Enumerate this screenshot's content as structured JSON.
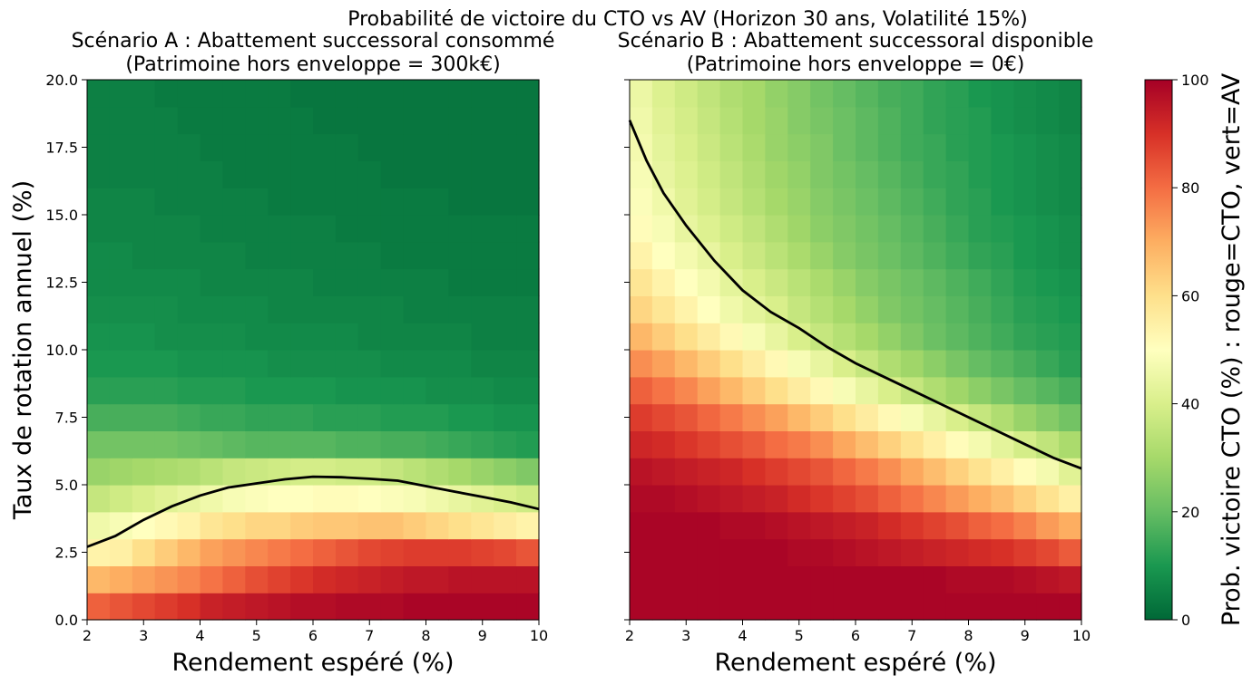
{
  "suptitle": "Probabilité de victoire du CTO vs AV (Horizon 30 ans, Volatilité 15%)",
  "colors": {
    "axis": "#000000",
    "contour": "#000000",
    "cmap_stops": [
      "#006837",
      "#1a9850",
      "#66bd63",
      "#a6d96a",
      "#d9ef8b",
      "#ffffbf",
      "#fee08b",
      "#fdae61",
      "#f46d43",
      "#d73027",
      "#a50026"
    ]
  },
  "chart_data": [
    {
      "type": "heatmap",
      "title_line1": "Scénario A : Abattement successoral consommé",
      "title_line2": "(Patrimoine hors enveloppe = 300k€)",
      "xlabel": "Rendement espéré (%)",
      "ylabel": "Taux de rotation annuel (%)",
      "xlim": [
        2,
        10
      ],
      "ylim": [
        0,
        20
      ],
      "x_ticks": [
        "2",
        "3",
        "4",
        "5",
        "6",
        "7",
        "8",
        "9",
        "10"
      ],
      "y_ticks": [
        "0.0",
        "2.5",
        "5.0",
        "7.5",
        "10.0",
        "12.5",
        "15.0",
        "17.5",
        "20.0"
      ],
      "grid": false,
      "z_range": [
        0,
        100
      ],
      "rows_from_bottom": [
        [
          82,
          84,
          86,
          88,
          90,
          93,
          94,
          95,
          96,
          97,
          97,
          98,
          98,
          98,
          99,
          99,
          99,
          99,
          99,
          99
        ],
        [
          68,
          70,
          72,
          74,
          76,
          79,
          82,
          85,
          87,
          89,
          91,
          92,
          93,
          94,
          95,
          95,
          96,
          96,
          96,
          96
        ],
        [
          54,
          55,
          60,
          64,
          68,
          72,
          74,
          76,
          78,
          80,
          82,
          84,
          86,
          87,
          88,
          88,
          88,
          87,
          86,
          84
        ],
        [
          46,
          48,
          50,
          52,
          54,
          58,
          60,
          62,
          62,
          64,
          65,
          65,
          66,
          66,
          64,
          62,
          60,
          58,
          56,
          54
        ],
        [
          36,
          38,
          40,
          42,
          44,
          46,
          48,
          49,
          50,
          50,
          51,
          51,
          50,
          49,
          48,
          46,
          44,
          42,
          40,
          38
        ],
        [
          28,
          29,
          30,
          31,
          32,
          34,
          36,
          37,
          38,
          39,
          39,
          38,
          38,
          36,
          34,
          32,
          30,
          28,
          26,
          24
        ],
        [
          22,
          22,
          22,
          22,
          21,
          20,
          19,
          18,
          18,
          18,
          18,
          17,
          17,
          16,
          16,
          15,
          14,
          13,
          12,
          11
        ],
        [
          16,
          16,
          16,
          16,
          15,
          14,
          14,
          13,
          13,
          13,
          12,
          12,
          12,
          11,
          11,
          11,
          10,
          10,
          9,
          9
        ],
        [
          12,
          12,
          12,
          12,
          11,
          11,
          11,
          10,
          10,
          10,
          10,
          9,
          9,
          9,
          9,
          8,
          8,
          8,
          7,
          7
        ],
        [
          10,
          10,
          10,
          10,
          9,
          9,
          9,
          9,
          8,
          8,
          8,
          8,
          8,
          7,
          7,
          7,
          7,
          6,
          6,
          6
        ],
        [
          9,
          9,
          9,
          8,
          8,
          8,
          8,
          7,
          7,
          7,
          7,
          7,
          6,
          6,
          6,
          6,
          6,
          5,
          5,
          5
        ],
        [
          8,
          8,
          8,
          8,
          7,
          7,
          7,
          7,
          6,
          6,
          6,
          6,
          6,
          6,
          5,
          5,
          5,
          5,
          5,
          5
        ],
        [
          7,
          7,
          7,
          7,
          7,
          6,
          6,
          6,
          6,
          6,
          5,
          5,
          5,
          5,
          5,
          5,
          4,
          4,
          4,
          4
        ],
        [
          7,
          7,
          6,
          6,
          6,
          6,
          6,
          5,
          5,
          5,
          5,
          5,
          5,
          4,
          4,
          4,
          4,
          4,
          4,
          4
        ],
        [
          6,
          6,
          6,
          6,
          6,
          5,
          5,
          5,
          5,
          5,
          5,
          4,
          4,
          4,
          4,
          4,
          4,
          4,
          4,
          4
        ],
        [
          6,
          6,
          6,
          5,
          5,
          5,
          5,
          5,
          4,
          4,
          4,
          4,
          4,
          4,
          4,
          4,
          3,
          3,
          3,
          3
        ],
        [
          5,
          5,
          5,
          5,
          5,
          5,
          4,
          4,
          4,
          4,
          4,
          4,
          4,
          3,
          3,
          3,
          3,
          3,
          3,
          3
        ],
        [
          5,
          5,
          5,
          5,
          5,
          4,
          4,
          4,
          4,
          4,
          4,
          4,
          3,
          3,
          3,
          3,
          3,
          3,
          3,
          3
        ],
        [
          5,
          5,
          5,
          5,
          4,
          4,
          4,
          4,
          4,
          4,
          3,
          3,
          3,
          3,
          3,
          3,
          3,
          3,
          3,
          3
        ],
        [
          5,
          5,
          5,
          4,
          4,
          4,
          4,
          4,
          4,
          3,
          3,
          3,
          3,
          3,
          3,
          3,
          3,
          3,
          3,
          3
        ]
      ],
      "contour_50": [
        [
          2,
          2.7
        ],
        [
          2.5,
          3.1
        ],
        [
          3,
          3.7
        ],
        [
          3.5,
          4.2
        ],
        [
          4,
          4.6
        ],
        [
          4.5,
          4.9
        ],
        [
          5,
          5.05
        ],
        [
          5.5,
          5.2
        ],
        [
          6,
          5.3
        ],
        [
          6.5,
          5.28
        ],
        [
          7,
          5.22
        ],
        [
          7.5,
          5.15
        ],
        [
          8,
          4.95
        ],
        [
          8.5,
          4.75
        ],
        [
          9,
          4.55
        ],
        [
          9.5,
          4.35
        ],
        [
          10,
          4.1
        ]
      ]
    },
    {
      "type": "heatmap",
      "title_line1": "Scénario B : Abattement successoral disponible",
      "title_line2": "(Patrimoine hors enveloppe = 0€)",
      "xlabel": "Rendement espéré (%)",
      "ylabel": "",
      "xlim": [
        2,
        10
      ],
      "ylim": [
        0,
        20
      ],
      "x_ticks": [
        "2",
        "3",
        "4",
        "5",
        "6",
        "7",
        "8",
        "9",
        "10"
      ],
      "y_ticks": [],
      "grid": false,
      "z_range": [
        0,
        100
      ],
      "rows_from_bottom": [
        [
          99,
          99,
          99,
          99,
          99,
          99,
          99,
          99,
          99,
          99,
          99,
          99,
          99,
          99,
          99,
          99,
          99,
          99,
          99,
          99
        ],
        [
          99,
          99,
          99,
          99,
          99,
          99,
          99,
          99,
          99,
          99,
          99,
          99,
          99,
          99,
          98,
          98,
          98,
          97,
          96,
          95
        ],
        [
          99,
          99,
          99,
          99,
          99,
          99,
          99,
          98,
          98,
          97,
          96,
          95,
          94,
          93,
          92,
          91,
          90,
          88,
          86,
          83
        ],
        [
          99,
          99,
          99,
          99,
          98,
          98,
          97,
          96,
          95,
          94,
          93,
          91,
          89,
          87,
          85,
          82,
          80,
          77,
          73,
          70
        ],
        [
          98,
          98,
          97,
          96,
          95,
          94,
          93,
          91,
          89,
          87,
          85,
          82,
          79,
          76,
          73,
          70,
          67,
          63,
          59,
          55
        ],
        [
          96,
          95,
          94,
          93,
          92,
          90,
          88,
          86,
          84,
          81,
          78,
          75,
          71,
          67,
          63,
          59,
          55,
          51,
          47,
          42
        ],
        [
          92,
          91,
          89,
          87,
          85,
          83,
          80,
          78,
          75,
          71,
          67,
          63,
          59,
          55,
          51,
          47,
          43,
          39,
          35,
          31
        ],
        [
          88,
          86,
          84,
          81,
          78,
          75,
          72,
          68,
          64,
          60,
          56,
          52,
          48,
          44,
          40,
          36,
          32,
          28,
          25,
          22
        ],
        [
          82,
          79,
          76,
          72,
          68,
          64,
          60,
          56,
          52,
          48,
          44,
          40,
          36,
          32,
          29,
          26,
          23,
          20,
          18,
          16
        ],
        [
          75,
          72,
          68,
          64,
          60,
          56,
          52,
          48,
          44,
          40,
          36,
          32,
          29,
          26,
          23,
          20,
          18,
          16,
          14,
          12
        ],
        [
          68,
          64,
          60,
          56,
          52,
          48,
          44,
          40,
          36,
          33,
          30,
          27,
          24,
          21,
          19,
          17,
          15,
          13,
          12,
          11
        ],
        [
          62,
          58,
          54,
          50,
          46,
          43,
          40,
          36,
          33,
          30,
          27,
          24,
          22,
          20,
          18,
          16,
          14,
          12,
          11,
          10
        ],
        [
          58,
          54,
          50,
          47,
          43,
          40,
          37,
          34,
          31,
          28,
          25,
          23,
          21,
          19,
          17,
          15,
          13,
          11,
          10,
          9
        ],
        [
          54,
          50,
          47,
          44,
          40,
          37,
          34,
          31,
          28,
          25,
          23,
          21,
          19,
          17,
          15,
          13,
          12,
          10,
          9,
          8
        ],
        [
          51,
          48,
          44,
          41,
          38,
          35,
          32,
          29,
          26,
          24,
          22,
          20,
          18,
          16,
          14,
          12,
          11,
          10,
          9,
          8
        ],
        [
          49,
          46,
          42,
          39,
          36,
          33,
          30,
          28,
          25,
          23,
          21,
          19,
          17,
          15,
          13,
          12,
          10,
          9,
          8,
          7
        ],
        [
          48,
          44,
          41,
          38,
          35,
          32,
          29,
          27,
          24,
          22,
          20,
          18,
          16,
          14,
          13,
          11,
          10,
          9,
          8,
          7
        ],
        [
          47,
          43,
          40,
          37,
          34,
          31,
          28,
          26,
          24,
          21,
          19,
          17,
          15,
          14,
          12,
          11,
          10,
          9,
          8,
          7
        ],
        [
          46,
          42,
          39,
          36,
          33,
          30,
          28,
          25,
          23,
          21,
          19,
          17,
          15,
          13,
          12,
          11,
          9,
          8,
          7,
          6
        ],
        [
          45,
          41,
          38,
          35,
          32,
          30,
          27,
          25,
          22,
          20,
          18,
          16,
          15,
          13,
          12,
          10,
          9,
          8,
          7,
          6
        ]
      ],
      "contour_50": [
        [
          2,
          18.5
        ],
        [
          2.3,
          17
        ],
        [
          2.6,
          15.8
        ],
        [
          3,
          14.6
        ],
        [
          3.5,
          13.3
        ],
        [
          4,
          12.2
        ],
        [
          4.5,
          11.4
        ],
        [
          5,
          10.8
        ],
        [
          5.5,
          10.1
        ],
        [
          6,
          9.5
        ],
        [
          6.5,
          9
        ],
        [
          7,
          8.5
        ],
        [
          7.5,
          8
        ],
        [
          8,
          7.5
        ],
        [
          8.5,
          7
        ],
        [
          9,
          6.5
        ],
        [
          9.5,
          6
        ],
        [
          10,
          5.6
        ]
      ]
    }
  ],
  "colorbar": {
    "label": "Prob. victoire CTO (%) : rouge=CTO, vert=AV",
    "ticks": [
      "0",
      "20",
      "40",
      "60",
      "80",
      "100"
    ],
    "range": [
      0,
      100
    ]
  }
}
